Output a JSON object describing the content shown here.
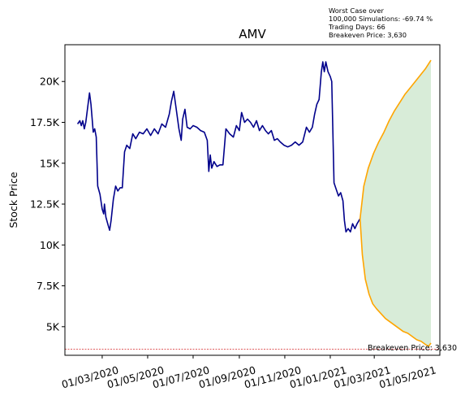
{
  "chart_data": {
    "type": "line",
    "title": "AMV",
    "ylabel": "Stock Price",
    "xlabel": "",
    "x_range": [
      "2020-01-11",
      "2021-05-28"
    ],
    "ylim": [
      3250,
      22250
    ],
    "grid": false,
    "y_ticks": [
      {
        "value": 5000,
        "label": "5K"
      },
      {
        "value": 7500,
        "label": "7.5K"
      },
      {
        "value": 10000,
        "label": "10K"
      },
      {
        "value": 12500,
        "label": "12.5K"
      },
      {
        "value": 15000,
        "label": "15K"
      },
      {
        "value": 17500,
        "label": "17.5K"
      },
      {
        "value": 20000,
        "label": "20K"
      }
    ],
    "x_ticks": [
      {
        "value": "2020-03-01",
        "label": "01/03/2020"
      },
      {
        "value": "2020-05-01",
        "label": "01/05/2020"
      },
      {
        "value": "2020-07-01",
        "label": "01/07/2020"
      },
      {
        "value": "2020-09-01",
        "label": "01/09/2020"
      },
      {
        "value": "2020-11-01",
        "label": "01/11/2020"
      },
      {
        "value": "2021-01-01",
        "label": "01/01/2021"
      },
      {
        "value": "2021-03-01",
        "label": "01/03/2021"
      },
      {
        "value": "2021-05-01",
        "label": "01/05/2021"
      }
    ],
    "series": [
      {
        "color": "#00008b",
        "points": [
          [
            "2020-01-28",
            17400
          ],
          [
            "2020-01-31",
            17600
          ],
          [
            "2020-02-02",
            17300
          ],
          [
            "2020-02-04",
            17600
          ],
          [
            "2020-02-06",
            17100
          ],
          [
            "2020-02-08",
            17500
          ],
          [
            "2020-02-11",
            18600
          ],
          [
            "2020-02-13",
            19300
          ],
          [
            "2020-02-15",
            18600
          ],
          [
            "2020-02-18",
            16900
          ],
          [
            "2020-02-20",
            17100
          ],
          [
            "2020-02-22",
            16600
          ],
          [
            "2020-02-24",
            13600
          ],
          [
            "2020-02-27",
            13100
          ],
          [
            "2020-03-01",
            12200
          ],
          [
            "2020-03-03",
            11900
          ],
          [
            "2020-03-04",
            12500
          ],
          [
            "2020-03-06",
            11700
          ],
          [
            "2020-03-09",
            11200
          ],
          [
            "2020-03-11",
            10900
          ],
          [
            "2020-03-13",
            11500
          ],
          [
            "2020-03-16",
            12800
          ],
          [
            "2020-03-19",
            13600
          ],
          [
            "2020-03-22",
            13300
          ],
          [
            "2020-03-25",
            13500
          ],
          [
            "2020-03-28",
            13500
          ],
          [
            "2020-03-31",
            15700
          ],
          [
            "2020-04-03",
            16100
          ],
          [
            "2020-04-07",
            15900
          ],
          [
            "2020-04-11",
            16800
          ],
          [
            "2020-04-15",
            16500
          ],
          [
            "2020-04-20",
            16900
          ],
          [
            "2020-04-25",
            16800
          ],
          [
            "2020-04-30",
            17100
          ],
          [
            "2020-05-05",
            16700
          ],
          [
            "2020-05-10",
            17100
          ],
          [
            "2020-05-15",
            16800
          ],
          [
            "2020-05-20",
            17400
          ],
          [
            "2020-05-25",
            17200
          ],
          [
            "2020-05-30",
            18000
          ],
          [
            "2020-06-02",
            18800
          ],
          [
            "2020-06-05",
            19400
          ],
          [
            "2020-06-08",
            18400
          ],
          [
            "2020-06-12",
            17100
          ],
          [
            "2020-06-15",
            16400
          ],
          [
            "2020-06-17",
            17700
          ],
          [
            "2020-06-20",
            18300
          ],
          [
            "2020-06-23",
            17200
          ],
          [
            "2020-06-27",
            17100
          ],
          [
            "2020-07-01",
            17300
          ],
          [
            "2020-07-06",
            17200
          ],
          [
            "2020-07-11",
            17000
          ],
          [
            "2020-07-16",
            16900
          ],
          [
            "2020-07-20",
            16400
          ],
          [
            "2020-07-22",
            14500
          ],
          [
            "2020-07-24",
            15500
          ],
          [
            "2020-07-26",
            14700
          ],
          [
            "2020-07-29",
            15100
          ],
          [
            "2020-08-02",
            14800
          ],
          [
            "2020-08-06",
            14900
          ],
          [
            "2020-08-10",
            14900
          ],
          [
            "2020-08-14",
            17100
          ],
          [
            "2020-08-19",
            16800
          ],
          [
            "2020-08-24",
            16600
          ],
          [
            "2020-08-28",
            17300
          ],
          [
            "2020-09-01",
            17000
          ],
          [
            "2020-09-04",
            18100
          ],
          [
            "2020-09-08",
            17500
          ],
          [
            "2020-09-12",
            17700
          ],
          [
            "2020-09-16",
            17500
          ],
          [
            "2020-09-20",
            17200
          ],
          [
            "2020-09-24",
            17600
          ],
          [
            "2020-09-28",
            17000
          ],
          [
            "2020-10-02",
            17300
          ],
          [
            "2020-10-06",
            17000
          ],
          [
            "2020-10-10",
            16800
          ],
          [
            "2020-10-14",
            17000
          ],
          [
            "2020-10-18",
            16400
          ],
          [
            "2020-10-22",
            16500
          ],
          [
            "2020-10-26",
            16300
          ],
          [
            "2020-10-31",
            16100
          ],
          [
            "2020-11-05",
            16000
          ],
          [
            "2020-11-10",
            16100
          ],
          [
            "2020-11-15",
            16300
          ],
          [
            "2020-11-20",
            16100
          ],
          [
            "2020-11-25",
            16300
          ],
          [
            "2020-11-30",
            17200
          ],
          [
            "2020-12-04",
            16900
          ],
          [
            "2020-12-08",
            17200
          ],
          [
            "2020-12-11",
            18000
          ],
          [
            "2020-12-14",
            18600
          ],
          [
            "2020-12-17",
            18900
          ],
          [
            "2020-12-20",
            20600
          ],
          [
            "2020-12-22",
            21200
          ],
          [
            "2020-12-24",
            20600
          ],
          [
            "2020-12-26",
            21200
          ],
          [
            "2020-12-29",
            20600
          ],
          [
            "2021-01-01",
            20300
          ],
          [
            "2021-01-03",
            20000
          ],
          [
            "2021-01-06",
            13800
          ],
          [
            "2021-01-09",
            13400
          ],
          [
            "2021-01-12",
            13000
          ],
          [
            "2021-01-15",
            13200
          ],
          [
            "2021-01-18",
            12700
          ],
          [
            "2021-01-20",
            11500
          ],
          [
            "2021-01-22",
            10800
          ],
          [
            "2021-01-25",
            11000
          ],
          [
            "2021-01-28",
            10800
          ],
          [
            "2021-01-31",
            11300
          ],
          [
            "2021-02-03",
            11000
          ],
          [
            "2021-02-06",
            11300
          ],
          [
            "2021-02-10",
            11600
          ]
        ]
      },
      {
        "color": "#ffa500",
        "points": [
          [
            "2021-02-10",
            11600
          ],
          [
            "2021-02-15",
            13600
          ],
          [
            "2021-02-21",
            14700
          ],
          [
            "2021-02-28",
            15600
          ],
          [
            "2021-03-07",
            16300
          ],
          [
            "2021-03-14",
            16900
          ],
          [
            "2021-03-21",
            17600
          ],
          [
            "2021-03-28",
            18200
          ],
          [
            "2021-04-04",
            18700
          ],
          [
            "2021-04-11",
            19200
          ],
          [
            "2021-04-18",
            19600
          ],
          [
            "2021-04-25",
            20000
          ],
          [
            "2021-05-02",
            20400
          ],
          [
            "2021-05-09",
            20800
          ],
          [
            "2021-05-16",
            21300
          ]
        ]
      },
      {
        "color": "#ffa500",
        "points": [
          [
            "2021-02-10",
            11600
          ],
          [
            "2021-02-13",
            9400
          ],
          [
            "2021-02-17",
            7900
          ],
          [
            "2021-02-22",
            7000
          ],
          [
            "2021-02-27",
            6400
          ],
          [
            "2021-03-04",
            6100
          ],
          [
            "2021-03-10",
            5800
          ],
          [
            "2021-03-16",
            5500
          ],
          [
            "2021-03-22",
            5300
          ],
          [
            "2021-03-28",
            5100
          ],
          [
            "2021-04-03",
            4900
          ],
          [
            "2021-04-09",
            4700
          ],
          [
            "2021-04-15",
            4600
          ],
          [
            "2021-04-21",
            4400
          ],
          [
            "2021-04-27",
            4200
          ],
          [
            "2021-05-03",
            4100
          ],
          [
            "2021-05-09",
            3900
          ],
          [
            "2021-05-13",
            3800
          ],
          [
            "2021-05-16",
            4000
          ]
        ]
      }
    ],
    "fill_color": "#d8ecd8",
    "breakeven": {
      "value": 3630,
      "color": "#d62728",
      "label": "Breakeven Price: 3,630"
    },
    "annotation_lines": [
      "Worst Case over",
      "100,000 Simulations: -69.74 %",
      "Trading Days: 66",
      "Breakeven Price: 3,630"
    ]
  }
}
